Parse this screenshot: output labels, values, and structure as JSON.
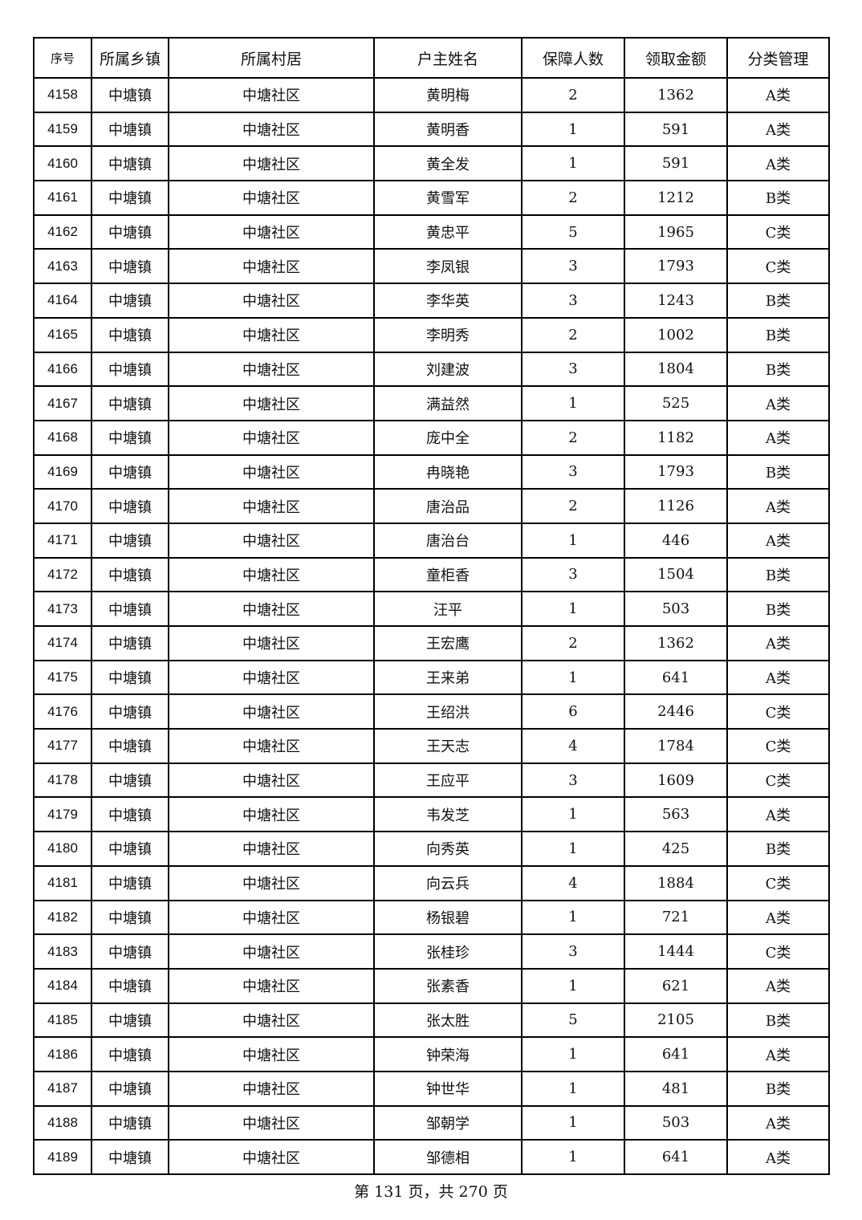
{
  "table": {
    "headers": [
      "序号",
      "所属乡镇",
      "所属村居",
      "户主姓名",
      "保障人数",
      "领取金额",
      "分类管理"
    ],
    "rows": [
      [
        "4158",
        "中塘镇",
        "中塘社区",
        "黄明梅",
        "2",
        "1362",
        "A类"
      ],
      [
        "4159",
        "中塘镇",
        "中塘社区",
        "黄明香",
        "1",
        "591",
        "A类"
      ],
      [
        "4160",
        "中塘镇",
        "中塘社区",
        "黄全发",
        "1",
        "591",
        "A类"
      ],
      [
        "4161",
        "中塘镇",
        "中塘社区",
        "黄雪军",
        "2",
        "1212",
        "B类"
      ],
      [
        "4162",
        "中塘镇",
        "中塘社区",
        "黄忠平",
        "5",
        "1965",
        "C类"
      ],
      [
        "4163",
        "中塘镇",
        "中塘社区",
        "李凤银",
        "3",
        "1793",
        "C类"
      ],
      [
        "4164",
        "中塘镇",
        "中塘社区",
        "李华英",
        "3",
        "1243",
        "B类"
      ],
      [
        "4165",
        "中塘镇",
        "中塘社区",
        "李明秀",
        "2",
        "1002",
        "B类"
      ],
      [
        "4166",
        "中塘镇",
        "中塘社区",
        "刘建波",
        "3",
        "1804",
        "B类"
      ],
      [
        "4167",
        "中塘镇",
        "中塘社区",
        "满益然",
        "1",
        "525",
        "A类"
      ],
      [
        "4168",
        "中塘镇",
        "中塘社区",
        "庞中全",
        "2",
        "1182",
        "A类"
      ],
      [
        "4169",
        "中塘镇",
        "中塘社区",
        "冉晓艳",
        "3",
        "1793",
        "B类"
      ],
      [
        "4170",
        "中塘镇",
        "中塘社区",
        "唐治品",
        "2",
        "1126",
        "A类"
      ],
      [
        "4171",
        "中塘镇",
        "中塘社区",
        "唐治台",
        "1",
        "446",
        "A类"
      ],
      [
        "4172",
        "中塘镇",
        "中塘社区",
        "童柜香",
        "3",
        "1504",
        "B类"
      ],
      [
        "4173",
        "中塘镇",
        "中塘社区",
        "汪平",
        "1",
        "503",
        "B类"
      ],
      [
        "4174",
        "中塘镇",
        "中塘社区",
        "王宏鹰",
        "2",
        "1362",
        "A类"
      ],
      [
        "4175",
        "中塘镇",
        "中塘社区",
        "王来弟",
        "1",
        "641",
        "A类"
      ],
      [
        "4176",
        "中塘镇",
        "中塘社区",
        "王绍洪",
        "6",
        "2446",
        "C类"
      ],
      [
        "4177",
        "中塘镇",
        "中塘社区",
        "王天志",
        "4",
        "1784",
        "C类"
      ],
      [
        "4178",
        "中塘镇",
        "中塘社区",
        "王应平",
        "3",
        "1609",
        "C类"
      ],
      [
        "4179",
        "中塘镇",
        "中塘社区",
        "韦发芝",
        "1",
        "563",
        "A类"
      ],
      [
        "4180",
        "中塘镇",
        "中塘社区",
        "向秀英",
        "1",
        "425",
        "B类"
      ],
      [
        "4181",
        "中塘镇",
        "中塘社区",
        "向云兵",
        "4",
        "1884",
        "C类"
      ],
      [
        "4182",
        "中塘镇",
        "中塘社区",
        "杨银碧",
        "1",
        "721",
        "A类"
      ],
      [
        "4183",
        "中塘镇",
        "中塘社区",
        "张桂珍",
        "3",
        "1444",
        "C类"
      ],
      [
        "4184",
        "中塘镇",
        "中塘社区",
        "张素香",
        "1",
        "621",
        "A类"
      ],
      [
        "4185",
        "中塘镇",
        "中塘社区",
        "张太胜",
        "5",
        "2105",
        "B类"
      ],
      [
        "4186",
        "中塘镇",
        "中塘社区",
        "钟荣海",
        "1",
        "641",
        "A类"
      ],
      [
        "4187",
        "中塘镇",
        "中塘社区",
        "钟世华",
        "1",
        "481",
        "B类"
      ],
      [
        "4188",
        "中塘镇",
        "中塘社区",
        "邹朝学",
        "1",
        "503",
        "A类"
      ],
      [
        "4189",
        "中塘镇",
        "中塘社区",
        "邹德相",
        "1",
        "641",
        "A类"
      ]
    ]
  },
  "footer": {
    "page_text": "第 131 页，共 270 页"
  }
}
